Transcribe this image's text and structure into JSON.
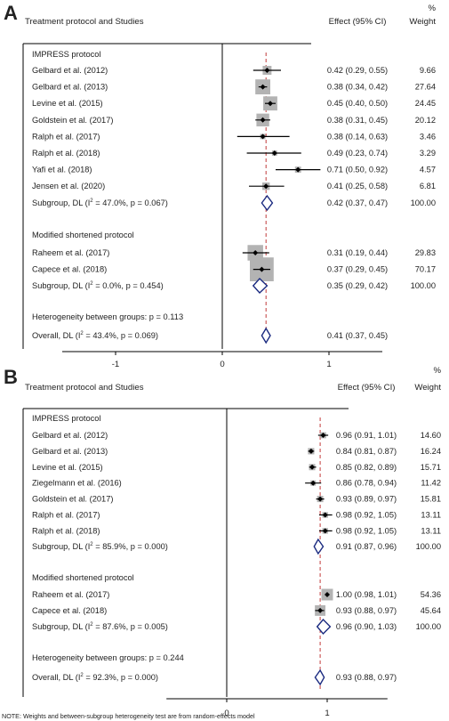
{
  "chart_data": [
    {
      "type": "forest",
      "panel": "A",
      "header": {
        "studies": "Treatment protocol and Studies",
        "effect": "Effect (95% CI)",
        "weight": "Weight",
        "weight_unit": "%"
      },
      "xticks": [
        -1,
        0,
        1
      ],
      "xlim": [
        -1.5,
        1.5
      ],
      "groups": [
        {
          "name": "IMPRESS protocol",
          "studies": [
            {
              "label": "Gelbard et al. (2012)",
              "es": 0.42,
              "lo": 0.29,
              "hi": 0.55,
              "ci": "0.42 (0.29, 0.55)",
              "weight": "9.66",
              "w": 9.66
            },
            {
              "label": "Gelbard et al. (2013)",
              "es": 0.38,
              "lo": 0.34,
              "hi": 0.42,
              "ci": "0.38 (0.34, 0.42)",
              "weight": "27.64",
              "w": 27.64
            },
            {
              "label": "Levine et al. (2015)",
              "es": 0.45,
              "lo": 0.4,
              "hi": 0.5,
              "ci": "0.45 (0.40, 0.50)",
              "weight": "24.45",
              "w": 24.45
            },
            {
              "label": "Goldstein et al. (2017)",
              "es": 0.38,
              "lo": 0.31,
              "hi": 0.45,
              "ci": "0.38 (0.31, 0.45)",
              "weight": "20.12",
              "w": 20.12
            },
            {
              "label": "Ralph et al. (2017)",
              "es": 0.38,
              "lo": 0.14,
              "hi": 0.63,
              "ci": "0.38 (0.14, 0.63)",
              "weight": "3.46",
              "w": 3.46
            },
            {
              "label": "Ralph et al. (2018)",
              "es": 0.49,
              "lo": 0.23,
              "hi": 0.74,
              "ci": "0.49 (0.23, 0.74)",
              "weight": "3.29",
              "w": 3.29
            },
            {
              "label": "Yafi et al. (2018)",
              "es": 0.71,
              "lo": 0.5,
              "hi": 0.92,
              "ci": "0.71 (0.50, 0.92)",
              "weight": "4.57",
              "w": 4.57
            },
            {
              "label": "Jensen et al. (2020)",
              "es": 0.41,
              "lo": 0.25,
              "hi": 0.58,
              "ci": "0.41 (0.25, 0.58)",
              "weight": "6.81",
              "w": 6.81
            }
          ],
          "subgroup": {
            "pre": "Subgroup, DL (I",
            "sup": "2",
            "post": " = 47.0%, p = 0.067)",
            "es": 0.42,
            "lo": 0.37,
            "hi": 0.47,
            "ci": "0.42 (0.37, 0.47)",
            "weight": "100.00"
          }
        },
        {
          "name": "Modified shortened protocol",
          "studies": [
            {
              "label": "Raheem et al. (2017)",
              "es": 0.31,
              "lo": 0.19,
              "hi": 0.44,
              "ci": "0.31 (0.19, 0.44)",
              "weight": "29.83",
              "w": 29.83
            },
            {
              "label": "Capece et al. (2018)",
              "es": 0.37,
              "lo": 0.29,
              "hi": 0.45,
              "ci": "0.37 (0.29, 0.45)",
              "weight": "70.17",
              "w": 70.17
            }
          ],
          "subgroup": {
            "pre": "Subgroup, DL (I",
            "sup": "2",
            "post": " = 0.0%, p = 0.454)",
            "es": 0.35,
            "lo": 0.29,
            "hi": 0.42,
            "ci": "0.35 (0.29, 0.42)",
            "weight": "100.00"
          }
        }
      ],
      "heterogeneity": "Heterogeneity between groups: p = 0.113",
      "overall": {
        "pre": "Overall, DL (I",
        "sup": "2",
        "post": " = 43.4%, p = 0.069)",
        "es": 0.41,
        "lo": 0.37,
        "hi": 0.45,
        "ci": "0.41 (0.37, 0.45)",
        "weight": ""
      },
      "note": ""
    },
    {
      "type": "forest",
      "panel": "B",
      "header": {
        "studies": "Treatment protocol and Studies",
        "effect": "Effect (95% CI)",
        "weight": "Weight",
        "weight_unit": "%"
      },
      "xticks": [
        0,
        1
      ],
      "xlim": [
        -0.6,
        1.6
      ],
      "groups": [
        {
          "name": "IMPRESS protocol",
          "studies": [
            {
              "label": "Gelbard et al. (2012)",
              "es": 0.96,
              "lo": 0.91,
              "hi": 1.01,
              "ci": "0.96 (0.91, 1.01)",
              "weight": "14.60",
              "w": 14.6
            },
            {
              "label": "Gelbard et al. (2013)",
              "es": 0.84,
              "lo": 0.81,
              "hi": 0.87,
              "ci": "0.84 (0.81, 0.87)",
              "weight": "16.24",
              "w": 16.24
            },
            {
              "label": "Levine et al. (2015)",
              "es": 0.85,
              "lo": 0.82,
              "hi": 0.89,
              "ci": "0.85 (0.82, 0.89)",
              "weight": "15.71",
              "w": 15.71
            },
            {
              "label": "Ziegelmann et al. (2016)",
              "es": 0.86,
              "lo": 0.78,
              "hi": 0.94,
              "ci": "0.86 (0.78, 0.94)",
              "weight": "11.42",
              "w": 11.42
            },
            {
              "label": "Goldstein et al. (2017)",
              "es": 0.93,
              "lo": 0.89,
              "hi": 0.97,
              "ci": "0.93 (0.89, 0.97)",
              "weight": "15.81",
              "w": 15.81
            },
            {
              "label": "Ralph et al. (2017)",
              "es": 0.98,
              "lo": 0.92,
              "hi": 1.05,
              "ci": "0.98 (0.92, 1.05)",
              "weight": "13.11",
              "w": 13.11
            },
            {
              "label": "Ralph et al. (2018)",
              "es": 0.98,
              "lo": 0.92,
              "hi": 1.05,
              "ci": "0.98 (0.92, 1.05)",
              "weight": "13.11",
              "w": 13.11
            }
          ],
          "subgroup": {
            "pre": "Subgroup, DL (I",
            "sup": "2",
            "post": " = 85.9%, p = 0.000)",
            "es": 0.91,
            "lo": 0.87,
            "hi": 0.96,
            "ci": "0.91 (0.87, 0.96)",
            "weight": "100.00"
          }
        },
        {
          "name": "Modified shortened protocol",
          "studies": [
            {
              "label": "Raheem et al. (2017)",
              "es": 1.0,
              "lo": 0.98,
              "hi": 1.01,
              "ci": "1.00 (0.98, 1.01)",
              "weight": "54.36",
              "w": 54.36
            },
            {
              "label": "Capece et al. (2018)",
              "es": 0.93,
              "lo": 0.88,
              "hi": 0.97,
              "ci": "0.93 (0.88, 0.97)",
              "weight": "45.64",
              "w": 45.64
            }
          ],
          "subgroup": {
            "pre": "Subgroup, DL (I",
            "sup": "2",
            "post": " = 87.6%, p = 0.005)",
            "es": 0.96,
            "lo": 0.9,
            "hi": 1.03,
            "ci": "0.96 (0.90, 1.03)",
            "weight": "100.00"
          }
        }
      ],
      "heterogeneity": "Heterogeneity between groups: p = 0.244",
      "overall": {
        "pre": "Overall, DL (I",
        "sup": "2",
        "post": " = 92.3%, p = 0.000)",
        "es": 0.93,
        "lo": 0.88,
        "hi": 0.97,
        "ci": "0.93 (0.88, 0.97)",
        "weight": ""
      },
      "note": "NOTE: Weights and between-subgroup heterogeneity test are from random-effects model"
    }
  ],
  "colors": {
    "box": "#b3b3b3",
    "point": "#000000",
    "diamond": "#1a2a80",
    "overall_line": "#c23b3b",
    "axis": "#000000"
  }
}
